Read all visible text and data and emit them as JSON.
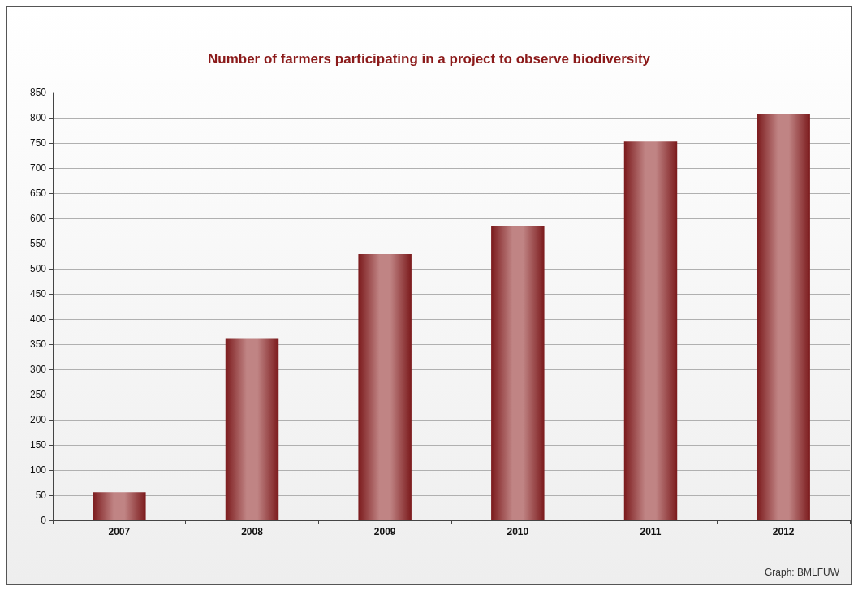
{
  "chart_data": {
    "type": "bar",
    "title": "Number of farmers participating in a project to observe biodiversity",
    "categories": [
      "2007",
      "2008",
      "2009",
      "2010",
      "2011",
      "2012"
    ],
    "values": [
      56,
      362,
      529,
      585,
      753,
      808
    ],
    "color": "#7b1a1c",
    "ylim": [
      0,
      850
    ],
    "yticks": [
      0,
      50,
      100,
      150,
      200,
      250,
      300,
      350,
      400,
      450,
      500,
      550,
      600,
      650,
      700,
      750,
      800,
      850
    ],
    "grid": "y",
    "annotations": [
      "Graph: BMLFUW"
    ]
  }
}
